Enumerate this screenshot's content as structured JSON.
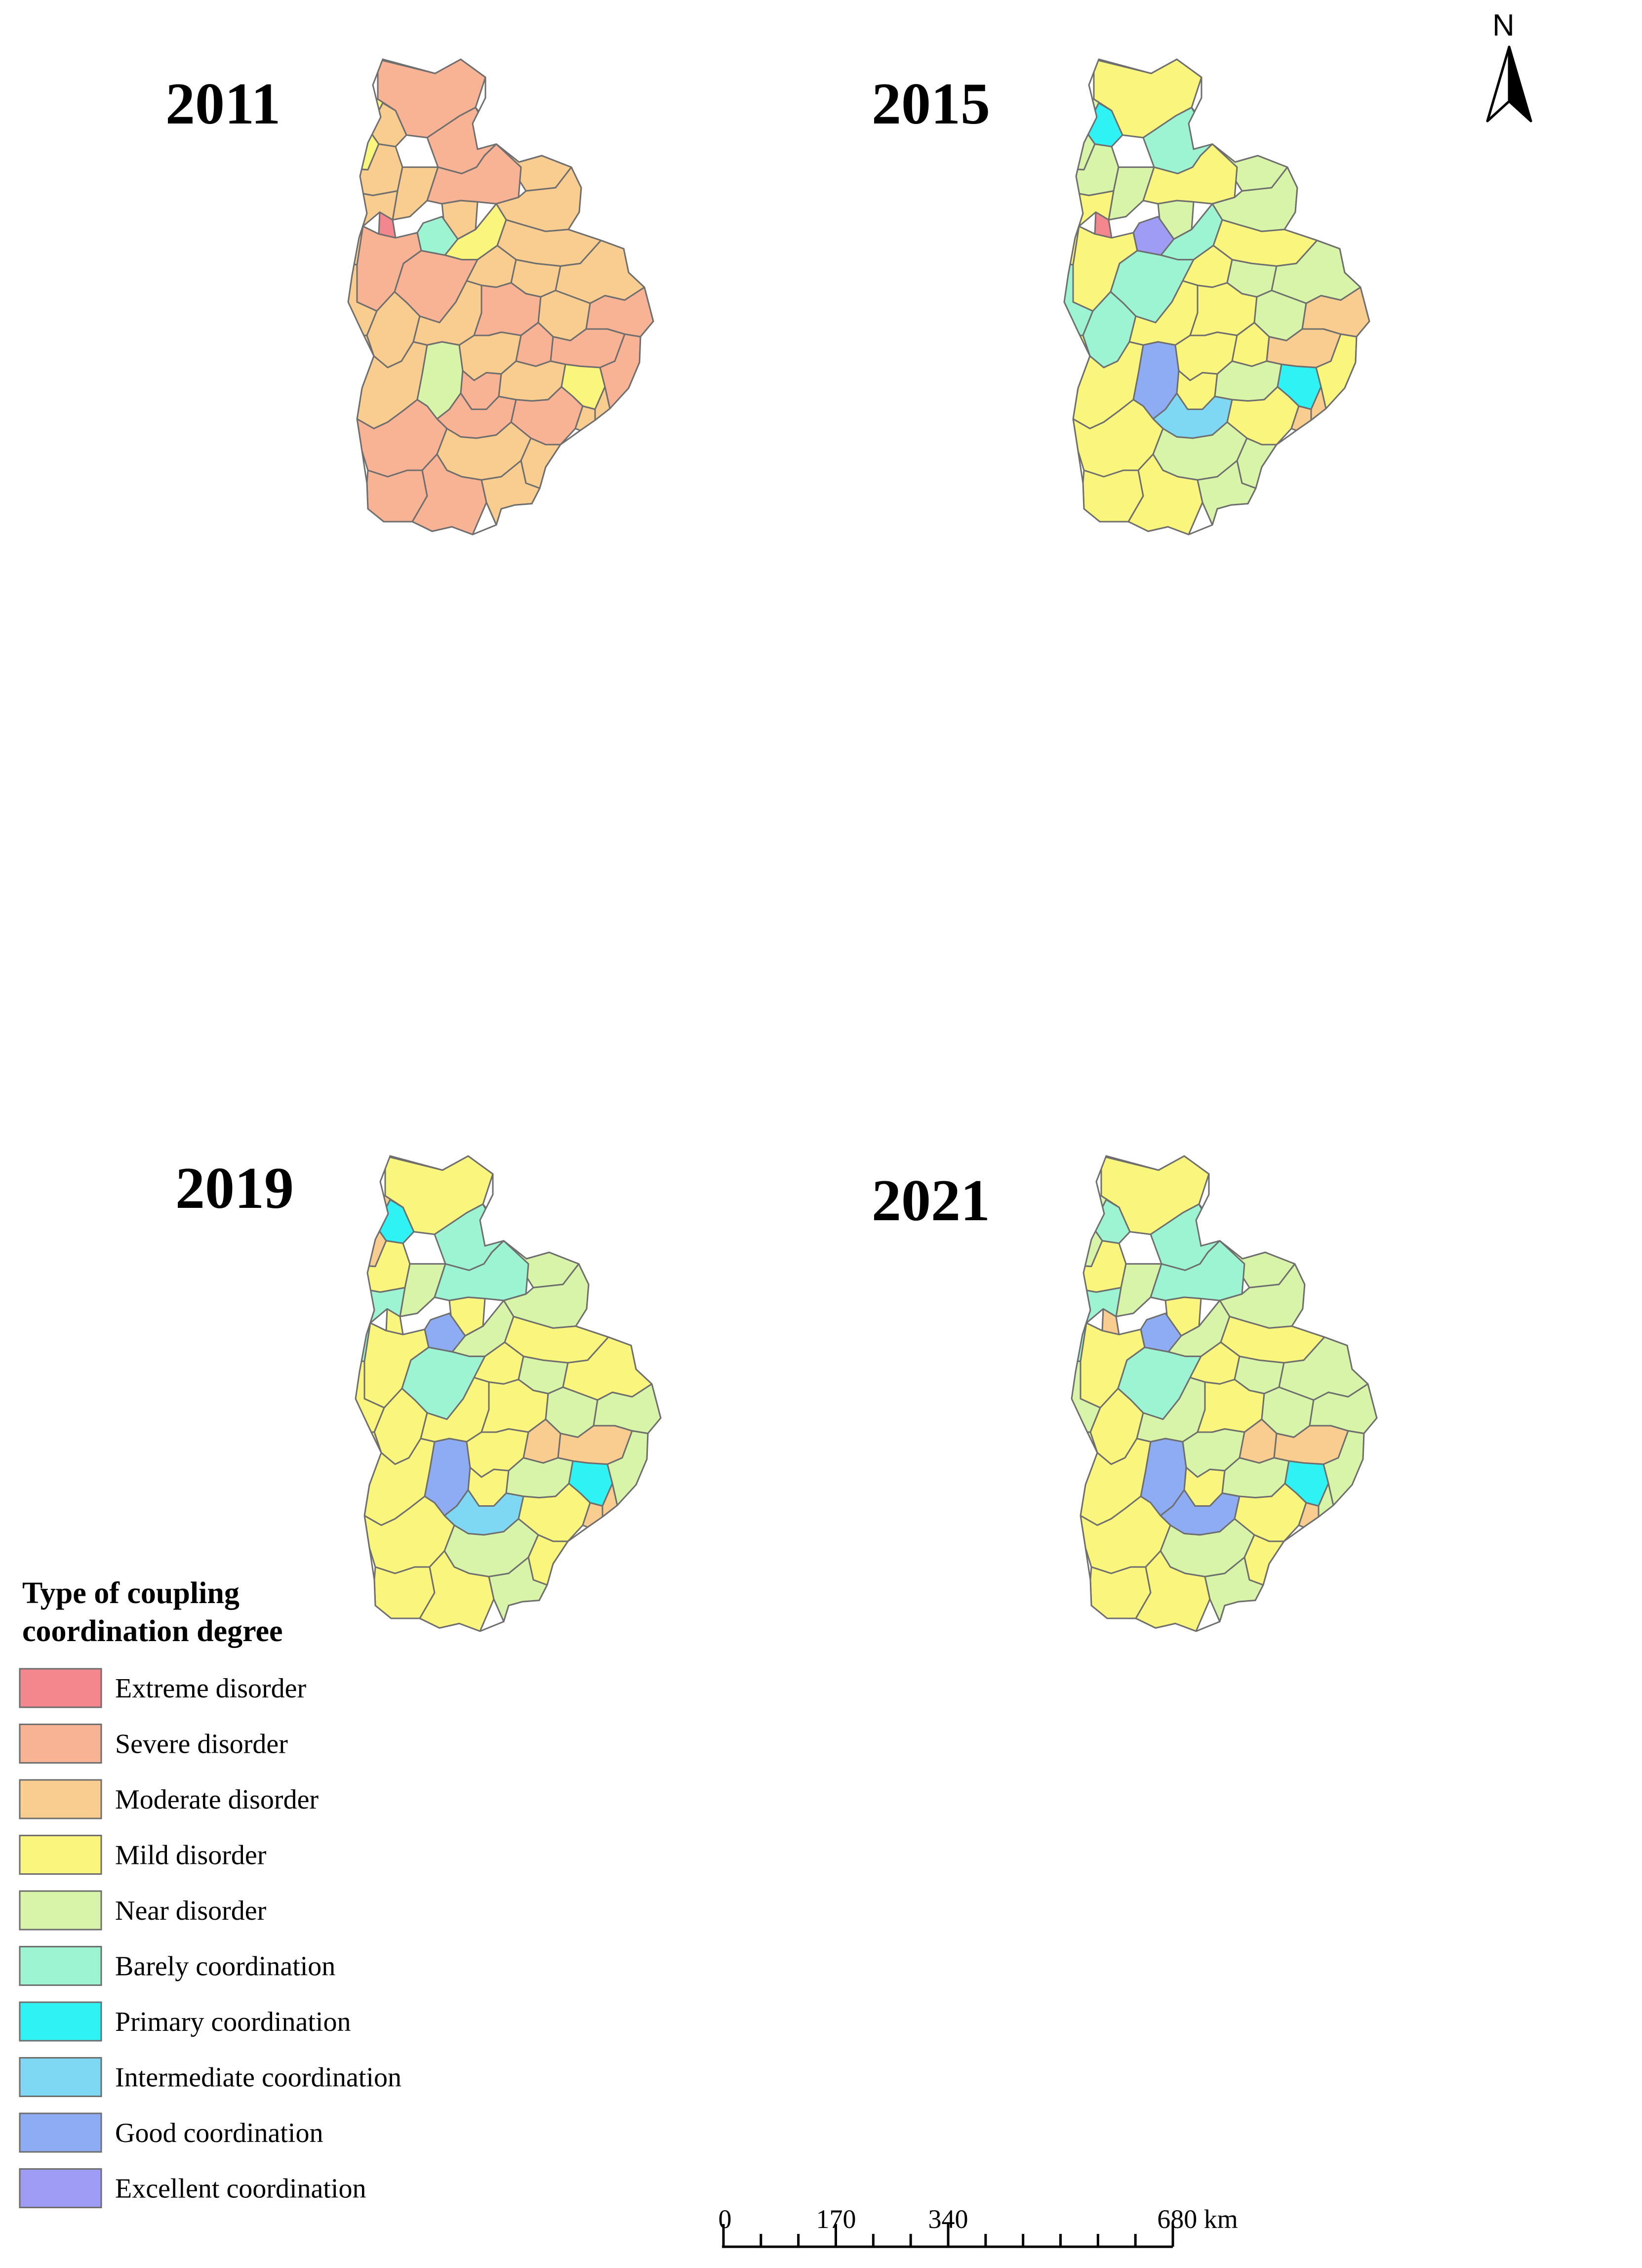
{
  "maps": [
    {
      "year": "2011",
      "categories": [
        "severe",
        "moderate",
        "mild",
        "moderate",
        "severe",
        "moderate",
        "moderate",
        "severe",
        "moderate",
        "moderate",
        "extreme",
        "barely",
        "mild",
        "moderate",
        "severe",
        "moderate",
        "severe",
        "moderate",
        "moderate",
        "moderate",
        "moderate",
        "moderate",
        "moderate",
        "severe",
        "moderate",
        "severe",
        "moderate",
        "moderate",
        "near",
        "moderate",
        "severe",
        "severe",
        "severe",
        "severe",
        "moderate",
        "mild",
        "moderate",
        "severe",
        "severe",
        "moderate",
        "severe",
        "moderate",
        "moderate",
        "severe",
        "severe",
        "moderate"
      ]
    },
    {
      "year": "2015",
      "categories": [
        "mild",
        "primary",
        "near",
        "near",
        "barely",
        "near",
        "near",
        "mild",
        "near",
        "near",
        "extreme",
        "excellent",
        "barely",
        "mild",
        "mild",
        "mild",
        "barely",
        "mild",
        "near",
        "near",
        "barely",
        "barely",
        "mild",
        "mild",
        "near",
        "moderate",
        "mild",
        "mild",
        "good",
        "mild",
        "mild",
        "moderate",
        "mild",
        "mild",
        "near",
        "primary",
        "moderate",
        "intermediate",
        "mild",
        "moderate",
        "mild",
        "near",
        "near",
        "mild",
        "mild",
        "near"
      ]
    },
    {
      "year": "2019",
      "categories": [
        "mild",
        "primary",
        "moderate",
        "mild",
        "barely",
        "near",
        "near",
        "barely",
        "mild",
        "near",
        "mild",
        "good",
        "near",
        "barely",
        "mild",
        "mild",
        "barely",
        "mild",
        "near",
        "mild",
        "mild",
        "mild",
        "mild",
        "mild",
        "near",
        "near",
        "mild",
        "mild",
        "good",
        "mild",
        "moderate",
        "moderate",
        "near",
        "mild",
        "near",
        "primary",
        "moderate",
        "intermediate",
        "mild",
        "moderate",
        "mild",
        "near",
        "mild",
        "mild",
        "mild",
        "near"
      ]
    },
    {
      "year": "2021",
      "categories": [
        "mild",
        "barely",
        "near",
        "mild",
        "barely",
        "near",
        "near",
        "barely",
        "mild",
        "near",
        "moderate",
        "good",
        "near",
        "barely",
        "mild",
        "mild",
        "barely",
        "mild",
        "near",
        "near",
        "near",
        "mild",
        "near",
        "mild",
        "near",
        "near",
        "near",
        "mild",
        "good",
        "near",
        "moderate",
        "moderate",
        "near",
        "mild",
        "near",
        "primary",
        "near",
        "good",
        "mild",
        "moderate",
        "mild",
        "near",
        "mild",
        "mild",
        "mild",
        "near"
      ]
    }
  ],
  "legend": {
    "title_line1": "Type of coupling",
    "title_line2": "coordination degree",
    "items": [
      {
        "key": "extreme",
        "label": "Extreme disorder",
        "color": "#F4878D"
      },
      {
        "key": "severe",
        "label": "Severe disorder",
        "color": "#F8B294"
      },
      {
        "key": "moderate",
        "label": "Moderate disorder",
        "color": "#F8CD8F"
      },
      {
        "key": "mild",
        "label": "Mild disorder",
        "color": "#F9F57D"
      },
      {
        "key": "near",
        "label": "Near disorder",
        "color": "#D8F4A8"
      },
      {
        "key": "barely",
        "label": "Barely coordination",
        "color": "#9CF4D2"
      },
      {
        "key": "primary",
        "label": "Primary coordination",
        "color": "#2EF2F4"
      },
      {
        "key": "intermediate",
        "label": "Intermediate coordination",
        "color": "#7FD8F3"
      },
      {
        "key": "good",
        "label": "Good coordination",
        "color": "#8DACF4"
      },
      {
        "key": "excellent",
        "label": "Excellent coordination",
        "color": "#9E9CF4"
      }
    ]
  },
  "scale_bar": {
    "ticks": [
      "0",
      "170",
      "340",
      "680 km"
    ]
  },
  "north_arrow": {
    "letter": "N",
    "icon": "north-arrow-icon"
  }
}
